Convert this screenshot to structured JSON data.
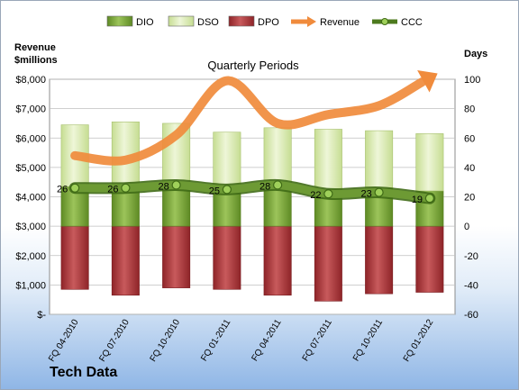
{
  "company": "Tech Data",
  "chart_data": {
    "type": "bar",
    "title": "Quarterly Periods",
    "y_left_label": [
      "Revenue",
      "$millions"
    ],
    "y_right_label": "Days",
    "categories": [
      "FQ 04-2010",
      "FQ 07-2010",
      "FQ 10-2010",
      "FQ 01-2011",
      "FQ 04-2011",
      "FQ 07-2011",
      "FQ 10-2011",
      "FQ 01-2012"
    ],
    "y_left": {
      "min": 0,
      "max": 8000,
      "step": 1000,
      "tick_labels": [
        "$-",
        "$1,000",
        "$2,000",
        "$3,000",
        "$4,000",
        "$5,000",
        "$6,000",
        "$7,000",
        "$8,000"
      ]
    },
    "y_right": {
      "min": -60,
      "max": 100,
      "step": 20,
      "tick_labels": [
        "-60",
        "-40",
        "-20",
        "0",
        "20",
        "40",
        "60",
        "80",
        "100"
      ]
    },
    "grid": true,
    "legend": "top",
    "series": [
      {
        "name": "DIO",
        "type": "bar-stacked",
        "axis": "right",
        "color": "#6f9a2c",
        "values": [
          27,
          27,
          28,
          26,
          28,
          25,
          26,
          24
        ]
      },
      {
        "name": "DSO",
        "type": "bar-stacked",
        "axis": "right",
        "color": "#d6e8a8",
        "values": [
          42,
          44,
          42,
          38,
          39,
          41,
          39,
          39
        ]
      },
      {
        "name": "DPO",
        "type": "bar-negative",
        "axis": "right",
        "color": "#a83236",
        "values": [
          -43,
          -47,
          -42,
          -43,
          -47,
          -51,
          -46,
          -45
        ]
      },
      {
        "name": "Revenue",
        "type": "line",
        "axis": "left",
        "color": "#f08b3c",
        "values": [
          5400,
          5250,
          6100,
          7950,
          6500,
          6800,
          7100,
          8050
        ]
      },
      {
        "name": "CCC",
        "type": "line",
        "axis": "right",
        "color": "#4d7a1e",
        "values": [
          26,
          26,
          28,
          25,
          28,
          22,
          23,
          19
        ],
        "labels": [
          "26",
          "26",
          "28",
          "25",
          "28",
          "22",
          "23",
          "19"
        ]
      }
    ]
  }
}
